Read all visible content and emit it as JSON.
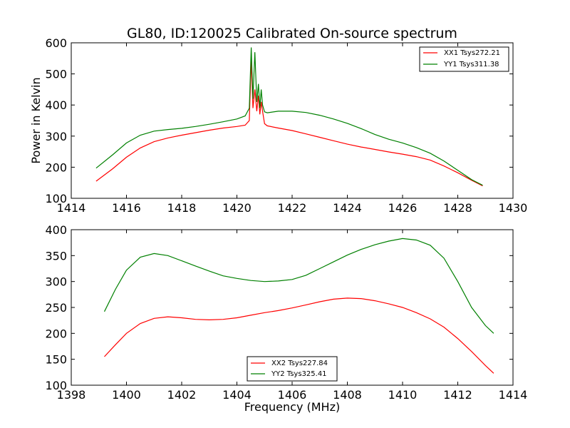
{
  "chart_data": {
    "type": "line",
    "title": "GL80, ID:120025 Calibrated On-source spectrum",
    "panels": [
      {
        "xlabel": "",
        "ylabel": "Power in Kelvin",
        "xlim": [
          1414,
          1430
        ],
        "ylim": [
          100,
          600
        ],
        "xticks": [
          "1414",
          "1416",
          "1418",
          "1420",
          "1422",
          "1424",
          "1426",
          "1428",
          "1430"
        ],
        "yticks": [
          "100",
          "200",
          "300",
          "400",
          "500",
          "600"
        ],
        "grid": false,
        "legend": "top-right",
        "series": [
          {
            "name": "XX1 Tsys272.21",
            "color": "#ff0000",
            "x": [
              1414.9,
              1415.5,
              1416.0,
              1416.5,
              1417.0,
              1417.5,
              1418.0,
              1418.5,
              1419.0,
              1419.5,
              1420.0,
              1420.3,
              1420.45,
              1420.52,
              1420.58,
              1420.65,
              1420.72,
              1420.78,
              1420.83,
              1420.88,
              1420.93,
              1421.0,
              1421.1,
              1421.5,
              1422.0,
              1422.5,
              1423.0,
              1423.5,
              1424.0,
              1424.5,
              1425.0,
              1425.5,
              1426.0,
              1426.5,
              1427.0,
              1427.5,
              1428.0,
              1428.5,
              1428.9
            ],
            "y": [
              155,
              195,
              232,
              262,
              282,
              294,
              303,
              311,
              319,
              326,
              331,
              335,
              350,
              545,
              390,
              450,
              380,
              430,
              370,
              410,
              380,
              340,
              333,
              326,
              318,
              307,
              296,
              285,
              274,
              265,
              257,
              249,
              242,
              234,
              223,
              204,
              182,
              158,
              140
            ]
          },
          {
            "name": "YY1 Tsys311.38",
            "color": "#008000",
            "x": [
              1414.9,
              1415.5,
              1416.0,
              1416.5,
              1417.0,
              1417.5,
              1418.0,
              1418.5,
              1419.0,
              1419.5,
              1420.0,
              1420.3,
              1420.45,
              1420.52,
              1420.58,
              1420.65,
              1420.72,
              1420.78,
              1420.83,
              1420.88,
              1420.93,
              1421.0,
              1421.1,
              1421.5,
              1422.0,
              1422.5,
              1423.0,
              1423.5,
              1424.0,
              1424.5,
              1425.0,
              1425.5,
              1426.0,
              1426.5,
              1427.0,
              1427.5,
              1428.0,
              1428.5,
              1428.9
            ],
            "y": [
              197,
              240,
              278,
              303,
              316,
              321,
              325,
              331,
              338,
              346,
              355,
              365,
              390,
              585,
              420,
              570,
              410,
              468,
              390,
              450,
              400,
              378,
              375,
              380,
              380,
              376,
              367,
              355,
              341,
              324,
              305,
              290,
              278,
              263,
              245,
              220,
              190,
              160,
              142
            ]
          }
        ]
      },
      {
        "xlabel": "Frequency (MHz)",
        "ylabel": "",
        "xlim": [
          1398,
          1414
        ],
        "ylim": [
          100,
          400
        ],
        "xticks": [
          "1398",
          "1400",
          "1402",
          "1404",
          "1406",
          "1408",
          "1410",
          "1412",
          "1414"
        ],
        "yticks": [
          "100",
          "150",
          "200",
          "250",
          "300",
          "350",
          "400"
        ],
        "grid": false,
        "legend": "bottom-center",
        "series": [
          {
            "name": "XX2 Tsys227.84",
            "color": "#ff0000",
            "x": [
              1399.2,
              1399.6,
              1400.0,
              1400.5,
              1401.0,
              1401.5,
              1402.0,
              1402.5,
              1403.0,
              1403.5,
              1404.0,
              1404.5,
              1405.0,
              1405.5,
              1406.0,
              1406.5,
              1407.0,
              1407.5,
              1408.0,
              1408.5,
              1409.0,
              1409.5,
              1410.0,
              1410.5,
              1411.0,
              1411.5,
              1412.0,
              1412.5,
              1413.0,
              1413.3
            ],
            "y": [
              155,
              178,
              200,
              219,
              229,
              232,
              230,
              227,
              226,
              227,
              230,
              235,
              240,
              244,
              249,
              255,
              261,
              266,
              268,
              267,
              263,
              257,
              250,
              240,
              228,
              212,
              190,
              165,
              138,
              123
            ]
          },
          {
            "name": "YY2 Tsys325.41",
            "color": "#008000",
            "x": [
              1399.2,
              1399.6,
              1400.0,
              1400.5,
              1401.0,
              1401.5,
              1402.0,
              1402.5,
              1403.0,
              1403.5,
              1404.0,
              1404.5,
              1405.0,
              1405.5,
              1406.0,
              1406.5,
              1407.0,
              1407.5,
              1408.0,
              1408.5,
              1409.0,
              1409.5,
              1410.0,
              1410.5,
              1411.0,
              1411.5,
              1412.0,
              1412.5,
              1413.0,
              1413.3
            ],
            "y": [
              242,
              285,
              322,
              347,
              354,
              350,
              340,
              330,
              320,
              311,
              306,
              302,
              300,
              301,
              304,
              312,
              325,
              338,
              351,
              362,
              371,
              378,
              383,
              380,
              370,
              345,
              300,
              250,
              215,
              200
            ]
          }
        ]
      }
    ]
  }
}
